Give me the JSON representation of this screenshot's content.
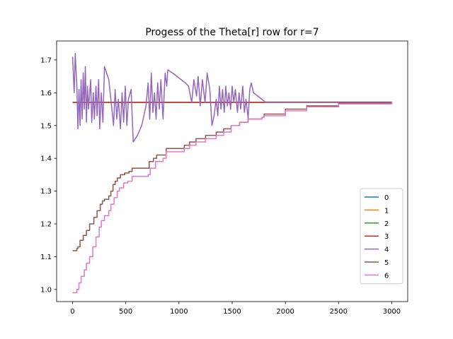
{
  "chart_data": {
    "type": "line",
    "title": "Progess of the Theta[r] row for r=7",
    "xlabel": "",
    "ylabel": "",
    "xlim": [
      -150,
      3150
    ],
    "ylim": [
      0.963,
      1.758
    ],
    "xticks": [
      0,
      500,
      1000,
      1500,
      2000,
      2500,
      3000
    ],
    "xtick_labels": [
      "0",
      "500",
      "1000",
      "1500",
      "2000",
      "2500",
      "3000"
    ],
    "yticks": [
      1.0,
      1.1,
      1.2,
      1.3,
      1.4,
      1.5,
      1.6,
      1.7
    ],
    "ytick_labels": [
      "1.0",
      "1.1",
      "1.2",
      "1.3",
      "1.4",
      "1.5",
      "1.6",
      "1.7"
    ],
    "grid": false,
    "legend_position": "lower-right",
    "series": [
      {
        "name": "0",
        "color": "#1f77b4",
        "style": "flat",
        "value": 1.5708
      },
      {
        "name": "1",
        "color": "#ff7f0e",
        "style": "flat",
        "value": 1.5708
      },
      {
        "name": "2",
        "color": "#2ca02c",
        "style": "flat",
        "value": 1.5708
      },
      {
        "name": "3",
        "color": "#d62728",
        "style": "flat",
        "value": 1.5708
      },
      {
        "name": "4",
        "color": "#9467bd",
        "style": "oscillating",
        "points": [
          [
            0,
            1.71
          ],
          [
            15,
            1.6
          ],
          [
            25,
            1.72
          ],
          [
            40,
            1.62
          ],
          [
            50,
            1.49
          ],
          [
            60,
            1.61
          ],
          [
            70,
            1.5
          ],
          [
            80,
            1.64
          ],
          [
            90,
            1.52
          ],
          [
            100,
            1.66
          ],
          [
            110,
            1.55
          ],
          [
            120,
            1.68
          ],
          [
            130,
            1.51
          ],
          [
            140,
            1.62
          ],
          [
            150,
            1.55
          ],
          [
            170,
            1.64
          ],
          [
            180,
            1.51
          ],
          [
            195,
            1.6
          ],
          [
            205,
            1.52
          ],
          [
            220,
            1.62
          ],
          [
            230,
            1.53
          ],
          [
            245,
            1.64
          ],
          [
            255,
            1.49
          ],
          [
            270,
            1.6
          ],
          [
            285,
            1.51
          ],
          [
            300,
            1.68
          ],
          [
            340,
            1.64
          ],
          [
            360,
            1.58
          ],
          [
            385,
            1.5
          ],
          [
            400,
            1.61
          ],
          [
            415,
            1.52
          ],
          [
            430,
            1.58
          ],
          [
            450,
            1.49
          ],
          [
            465,
            1.6
          ],
          [
            480,
            1.51
          ],
          [
            495,
            1.62
          ],
          [
            510,
            1.5
          ],
          [
            525,
            1.58
          ],
          [
            550,
            1.61
          ],
          [
            570,
            1.45
          ],
          [
            610,
            1.47
          ],
          [
            650,
            1.5
          ],
          [
            690,
            1.56
          ],
          [
            710,
            1.63
          ],
          [
            725,
            1.52
          ],
          [
            740,
            1.66
          ],
          [
            755,
            1.54
          ],
          [
            770,
            1.6
          ],
          [
            785,
            1.52
          ],
          [
            800,
            1.63
          ],
          [
            815,
            1.55
          ],
          [
            830,
            1.64
          ],
          [
            850,
            1.52
          ],
          [
            870,
            1.66
          ],
          [
            885,
            1.62
          ],
          [
            895,
            1.67
          ],
          [
            940,
            1.66
          ],
          [
            980,
            1.65
          ],
          [
            1020,
            1.64
          ],
          [
            1060,
            1.63
          ],
          [
            1090,
            1.62
          ],
          [
            1120,
            1.57
          ],
          [
            1140,
            1.64
          ],
          [
            1165,
            1.59
          ],
          [
            1180,
            1.65
          ],
          [
            1200,
            1.56
          ],
          [
            1220,
            1.64
          ],
          [
            1245,
            1.57
          ],
          [
            1265,
            1.66
          ],
          [
            1290,
            1.61
          ],
          [
            1310,
            1.5
          ],
          [
            1330,
            1.53
          ],
          [
            1350,
            1.58
          ],
          [
            1365,
            1.53
          ],
          [
            1380,
            1.62
          ],
          [
            1395,
            1.55
          ],
          [
            1410,
            1.61
          ],
          [
            1425,
            1.54
          ],
          [
            1440,
            1.62
          ],
          [
            1455,
            1.56
          ],
          [
            1470,
            1.6
          ],
          [
            1485,
            1.55
          ],
          [
            1500,
            1.62
          ],
          [
            1515,
            1.57
          ],
          [
            1530,
            1.61
          ],
          [
            1550,
            1.54
          ],
          [
            1565,
            1.6
          ],
          [
            1580,
            1.55
          ],
          [
            1600,
            1.62
          ],
          [
            1615,
            1.54
          ],
          [
            1630,
            1.58
          ],
          [
            1650,
            1.52
          ],
          [
            1665,
            1.61
          ],
          [
            1680,
            1.63
          ],
          [
            1700,
            1.6
          ],
          [
            1740,
            1.59
          ],
          [
            1780,
            1.58
          ],
          [
            1810,
            1.572
          ],
          [
            3000,
            1.572
          ]
        ]
      },
      {
        "name": "5",
        "color": "#8c564b",
        "style": "step",
        "points": [
          [
            0,
            1.118
          ],
          [
            40,
            1.125
          ],
          [
            50,
            1.13
          ],
          [
            70,
            1.15
          ],
          [
            100,
            1.165
          ],
          [
            130,
            1.18
          ],
          [
            160,
            1.2
          ],
          [
            200,
            1.22
          ],
          [
            230,
            1.24
          ],
          [
            260,
            1.26
          ],
          [
            280,
            1.27
          ],
          [
            300,
            1.275
          ],
          [
            340,
            1.285
          ],
          [
            360,
            1.3
          ],
          [
            380,
            1.32
          ],
          [
            400,
            1.33
          ],
          [
            420,
            1.34
          ],
          [
            450,
            1.35
          ],
          [
            490,
            1.355
          ],
          [
            530,
            1.36
          ],
          [
            560,
            1.37
          ],
          [
            720,
            1.39
          ],
          [
            760,
            1.4
          ],
          [
            790,
            1.41
          ],
          [
            880,
            1.43
          ],
          [
            1050,
            1.44
          ],
          [
            1100,
            1.45
          ],
          [
            1160,
            1.46
          ],
          [
            1250,
            1.47
          ],
          [
            1350,
            1.48
          ],
          [
            1420,
            1.49
          ],
          [
            1490,
            1.5
          ],
          [
            1570,
            1.51
          ],
          [
            1650,
            1.52
          ],
          [
            1780,
            1.525
          ],
          [
            1800,
            1.535
          ],
          [
            2000,
            1.55
          ],
          [
            2200,
            1.56
          ],
          [
            2500,
            1.568
          ],
          [
            3000,
            1.571
          ]
        ]
      },
      {
        "name": "6",
        "color": "#e377c2",
        "style": "step",
        "points": [
          [
            0,
            0.99
          ],
          [
            40,
            1.0
          ],
          [
            60,
            1.02
          ],
          [
            80,
            1.04
          ],
          [
            110,
            1.06
          ],
          [
            130,
            1.08
          ],
          [
            160,
            1.1
          ],
          [
            190,
            1.13
          ],
          [
            220,
            1.16
          ],
          [
            250,
            1.19
          ],
          [
            270,
            1.21
          ],
          [
            300,
            1.225
          ],
          [
            340,
            1.24
          ],
          [
            360,
            1.26
          ],
          [
            390,
            1.28
          ],
          [
            420,
            1.3
          ],
          [
            440,
            1.31
          ],
          [
            480,
            1.325
          ],
          [
            520,
            1.33
          ],
          [
            560,
            1.345
          ],
          [
            710,
            1.35
          ],
          [
            730,
            1.37
          ],
          [
            780,
            1.39
          ],
          [
            850,
            1.4
          ],
          [
            880,
            1.42
          ],
          [
            1050,
            1.43
          ],
          [
            1100,
            1.44
          ],
          [
            1160,
            1.45
          ],
          [
            1250,
            1.46
          ],
          [
            1350,
            1.47
          ],
          [
            1420,
            1.48
          ],
          [
            1490,
            1.5
          ],
          [
            1570,
            1.51
          ],
          [
            1650,
            1.52
          ],
          [
            1780,
            1.525
          ],
          [
            1800,
            1.53
          ],
          [
            2000,
            1.545
          ],
          [
            2200,
            1.557
          ],
          [
            2500,
            1.566
          ],
          [
            3000,
            1.57
          ]
        ]
      }
    ]
  }
}
